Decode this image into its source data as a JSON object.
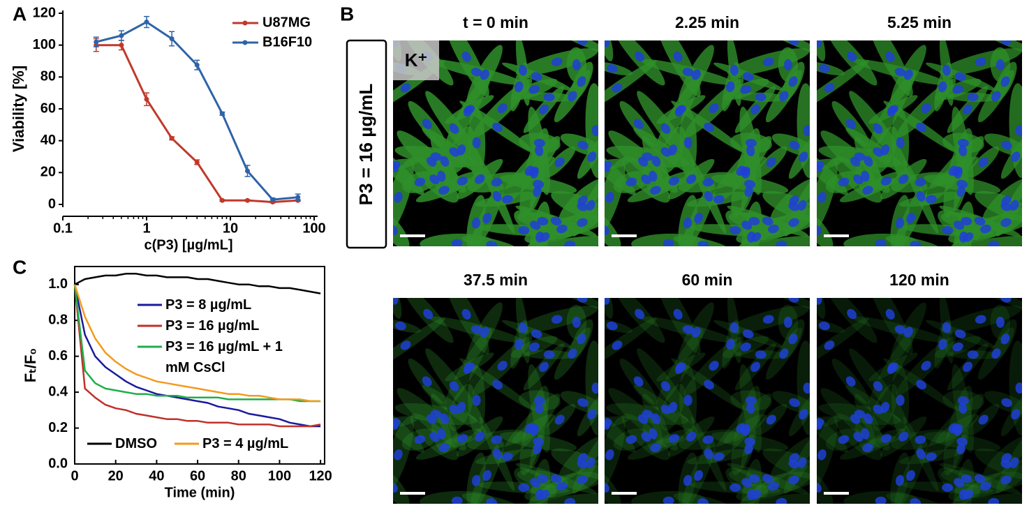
{
  "panel_labels": [
    "A",
    "B",
    "C"
  ],
  "chart_data": [
    {
      "type": "line",
      "x_scale": "log",
      "frame": "open",
      "legend": "upper right",
      "xlabel": "c(P3) [µg/mL]",
      "ylabel": "Viability [%]",
      "x": [
        0.25,
        0.5,
        1,
        2,
        4,
        8,
        16,
        32,
        64
      ],
      "xlim": [
        0.1,
        100
      ],
      "xticks": [
        0.1,
        1,
        10,
        100
      ],
      "ylim": [
        0,
        120
      ],
      "yticks": [
        0,
        20,
        40,
        60,
        80,
        100,
        120
      ],
      "series": [
        {
          "name": "U87MG",
          "color": "#c0392b",
          "values": [
            100,
            100,
            66,
            41.5,
            26.5,
            2.5,
            2.5,
            1.5,
            2.5
          ],
          "errors": [
            4,
            3,
            4,
            1,
            1.5,
            0.5,
            0.5,
            0.5,
            0.5
          ]
        },
        {
          "name": "B16F10",
          "color": "#2e63a8",
          "values": [
            102,
            106,
            114.5,
            104,
            87.5,
            57,
            21,
            3,
            4.5
          ],
          "errors": [
            3,
            3,
            3.5,
            4.5,
            3,
            1,
            3.5,
            1,
            2
          ]
        }
      ]
    },
    {
      "type": "line",
      "frame": "box",
      "xlabel": "Time (min)",
      "ylabel": "Fₜ/F₀",
      "x": [
        0,
        5,
        10,
        15,
        20,
        25,
        30,
        35,
        40,
        45,
        50,
        55,
        60,
        65,
        70,
        75,
        80,
        85,
        90,
        95,
        100,
        105,
        110,
        115,
        120
      ],
      "xlim": [
        0,
        122
      ],
      "xticks": [
        0,
        20,
        40,
        60,
        80,
        100,
        120
      ],
      "ylim": [
        0,
        1.1
      ],
      "yticks": [
        {
          "value": 0,
          "label": "0.0"
        },
        0.2,
        0.4,
        0.6,
        0.8,
        {
          "value": 1,
          "label": "1.0"
        }
      ],
      "series": [
        {
          "name": "P3 = 8 µg/mL",
          "color": "#1a1a9c",
          "values": [
            1.0,
            0.72,
            0.6,
            0.54,
            0.5,
            0.46,
            0.43,
            0.41,
            0.39,
            0.38,
            0.37,
            0.36,
            0.35,
            0.34,
            0.32,
            0.31,
            0.3,
            0.28,
            0.27,
            0.26,
            0.25,
            0.23,
            0.22,
            0.21,
            0.21
          ]
        },
        {
          "name": "P3 = 16 µg/mL",
          "color": "#c0302a",
          "values": [
            1.0,
            0.42,
            0.37,
            0.33,
            0.31,
            0.3,
            0.28,
            0.27,
            0.26,
            0.25,
            0.25,
            0.24,
            0.24,
            0.23,
            0.23,
            0.23,
            0.22,
            0.22,
            0.22,
            0.22,
            0.21,
            0.21,
            0.21,
            0.21,
            0.22
          ]
        },
        {
          "name": "P3 = 16 µg/mL + 1 mM CsCl",
          "color": "#1fae4b",
          "values": [
            1.0,
            0.52,
            0.45,
            0.42,
            0.41,
            0.4,
            0.39,
            0.39,
            0.38,
            0.38,
            0.38,
            0.37,
            0.37,
            0.37,
            0.37,
            0.36,
            0.36,
            0.36,
            0.36,
            0.36,
            0.36,
            0.36,
            0.35,
            0.35,
            0.35
          ]
        },
        {
          "name": "DMSO",
          "color": "#000000",
          "values": [
            1.0,
            1.03,
            1.04,
            1.05,
            1.05,
            1.06,
            1.06,
            1.05,
            1.05,
            1.04,
            1.04,
            1.04,
            1.03,
            1.03,
            1.02,
            1.01,
            1.0,
            1.0,
            0.99,
            0.99,
            0.98,
            0.98,
            0.97,
            0.96,
            0.95
          ]
        },
        {
          "name": "P3 = 4 µg/mL",
          "color": "#f39a1d",
          "values": [
            1.0,
            0.82,
            0.7,
            0.62,
            0.57,
            0.53,
            0.5,
            0.48,
            0.46,
            0.45,
            0.44,
            0.43,
            0.42,
            0.41,
            0.4,
            0.39,
            0.39,
            0.38,
            0.38,
            0.37,
            0.36,
            0.36,
            0.36,
            0.35,
            0.35
          ]
        }
      ]
    }
  ],
  "microscopy": {
    "row_label": "P3 = 16 µg/mL",
    "channel": "K⁺",
    "times": [
      "t = 0 min",
      "2.25 min",
      "5.25 min",
      "37.5 min",
      "60 min",
      "120 min"
    ]
  }
}
